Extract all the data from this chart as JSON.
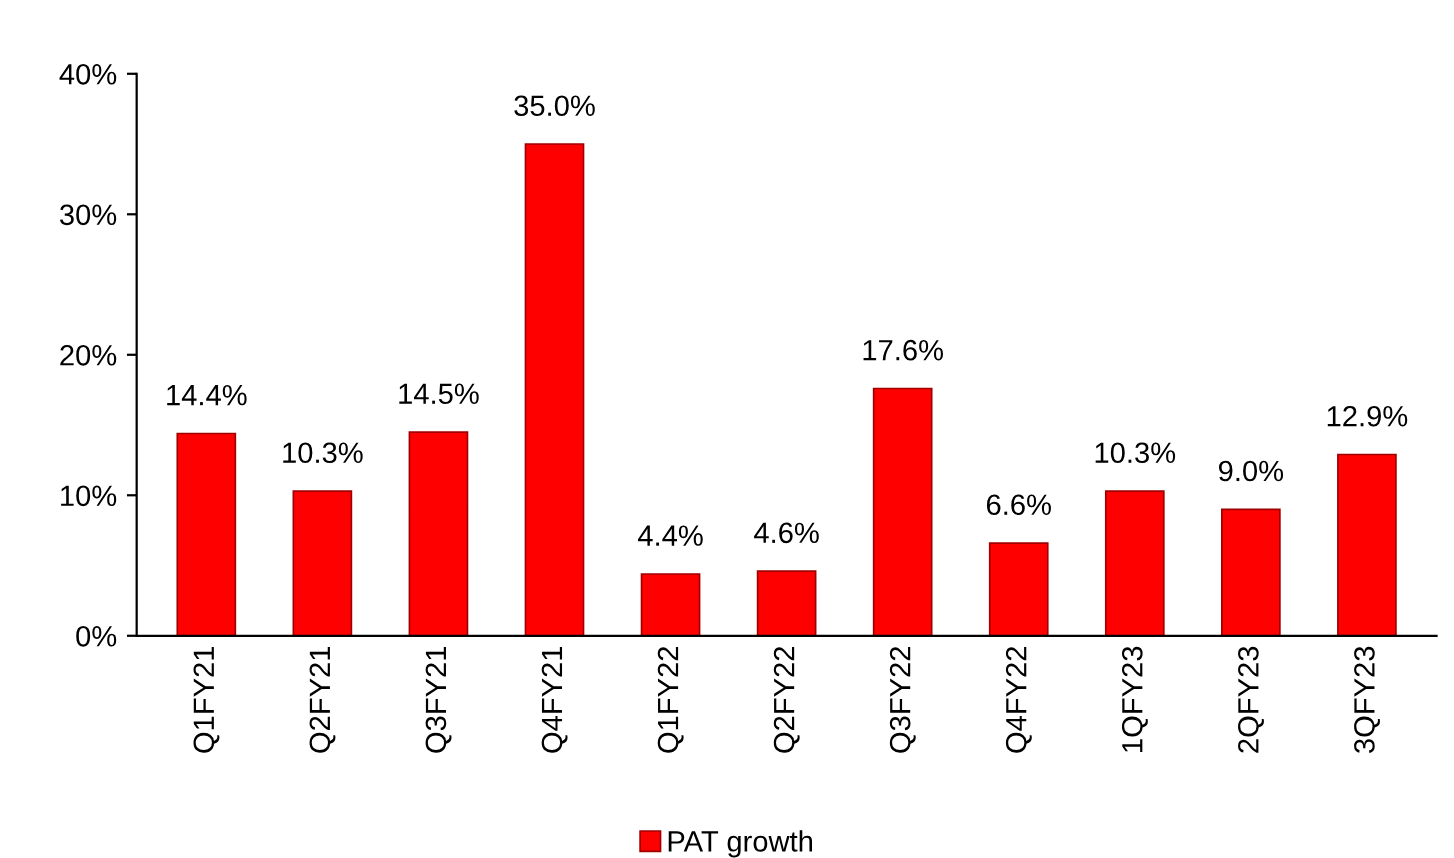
{
  "chart_data": {
    "type": "bar",
    "categories": [
      "Q1FY21",
      "Q2FY21",
      "Q3FY21",
      "Q4FY21",
      "Q1FY22",
      "Q2FY22",
      "Q3FY22",
      "Q4FY22",
      "1QFY23",
      "2QFY23",
      "3QFY23"
    ],
    "series": [
      {
        "name": "PAT growth",
        "color": "#ff0000",
        "values": [
          14.4,
          10.3,
          14.5,
          35.0,
          4.4,
          4.6,
          17.6,
          6.6,
          10.3,
          9.0,
          12.9
        ],
        "value_labels": [
          "14.4%",
          "10.3%",
          "14.5%",
          "35.0%",
          "4.4%",
          "4.6%",
          "17.6%",
          "6.6%",
          "10.3%",
          "9.0%",
          "12.9%"
        ]
      }
    ],
    "ylim": [
      0,
      40
    ],
    "yticks": [
      {
        "value": 0,
        "label": "0%"
      },
      {
        "value": 10,
        "label": "10%"
      },
      {
        "value": 20,
        "label": "20%"
      },
      {
        "value": 30,
        "label": "30%"
      },
      {
        "value": 40,
        "label": "40%"
      }
    ],
    "grid": false,
    "legend": "bottom"
  }
}
